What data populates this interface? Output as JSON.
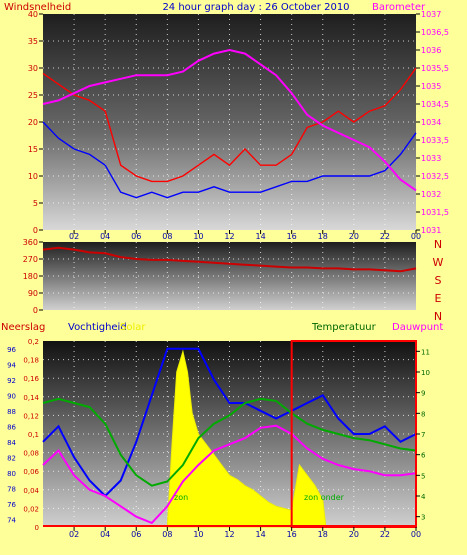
{
  "chart_data": [
    {
      "type": "line",
      "title": "24 hour graph day : 26 October 2010",
      "left_label": "Windsnelheid",
      "right_label": "Barometer",
      "x_ticks": [
        "02",
        "04",
        "06",
        "08",
        "10",
        "12",
        "14",
        "16",
        "18",
        "20",
        "22",
        "00"
      ],
      "y_left_ticks": [
        "0",
        "5",
        "10",
        "15",
        "20",
        "25",
        "30",
        "35",
        "40"
      ],
      "y_left_range": [
        0,
        40
      ],
      "y_right_ticks": [
        "1031",
        "1031,5",
        "1032",
        "1032,5",
        "1033",
        "1033,5",
        "1034",
        "1034,5",
        "1035",
        "1035,5",
        "1036",
        "1036,5",
        "1037"
      ],
      "y_right_range": [
        1031,
        1037
      ],
      "series": [
        {
          "color": "#ff0000",
          "axis": "left",
          "x": [
            0,
            1,
            2,
            3,
            4,
            5,
            6,
            7,
            8,
            9,
            10,
            11,
            12,
            13,
            14,
            15,
            16,
            17,
            18,
            19,
            20,
            21,
            22,
            23,
            24
          ],
          "y": [
            29,
            27,
            25,
            24,
            22,
            12,
            10,
            9,
            9,
            10,
            12,
            14,
            12,
            15,
            12,
            12,
            14,
            19,
            20,
            22,
            20,
            22,
            23,
            26,
            30
          ]
        },
        {
          "color": "#0000ff",
          "axis": "left",
          "x": [
            0,
            1,
            2,
            3,
            4,
            5,
            6,
            7,
            8,
            9,
            10,
            11,
            12,
            13,
            14,
            15,
            16,
            17,
            18,
            19,
            20,
            21,
            22,
            23,
            24
          ],
          "y": [
            20,
            17,
            15,
            14,
            12,
            7,
            6,
            7,
            6,
            7,
            7,
            8,
            7,
            7,
            7,
            8,
            9,
            9,
            10,
            10,
            10,
            10,
            11,
            14,
            18
          ]
        },
        {
          "color": "#ff00ff",
          "axis": "right",
          "x": [
            0,
            1,
            2,
            3,
            4,
            5,
            6,
            7,
            8,
            9,
            10,
            11,
            12,
            13,
            14,
            15,
            16,
            17,
            18,
            19,
            20,
            21,
            22,
            23,
            24
          ],
          "y": [
            1034.5,
            1034.6,
            1034.8,
            1035.0,
            1035.1,
            1035.2,
            1035.3,
            1035.3,
            1035.3,
            1035.4,
            1035.7,
            1035.9,
            1036.0,
            1035.9,
            1035.6,
            1035.3,
            1034.8,
            1034.2,
            1033.9,
            1033.7,
            1033.5,
            1033.3,
            1032.9,
            1032.4,
            1032.1
          ]
        }
      ]
    },
    {
      "type": "line",
      "y_ticks": [
        "0",
        "90",
        "180",
        "270",
        "360"
      ],
      "y_range": [
        0,
        360
      ],
      "right_labels": [
        "N",
        "W",
        "S",
        "E",
        "N"
      ],
      "series": [
        {
          "color": "#cc0000",
          "x": [
            0,
            1,
            2,
            3,
            4,
            5,
            6,
            7,
            8,
            9,
            10,
            11,
            12,
            13,
            14,
            15,
            16,
            17,
            18,
            19,
            20,
            21,
            22,
            23,
            24
          ],
          "y": [
            320,
            330,
            320,
            305,
            300,
            280,
            270,
            265,
            265,
            260,
            255,
            250,
            245,
            240,
            235,
            230,
            225,
            225,
            220,
            220,
            215,
            215,
            210,
            205,
            220
          ]
        }
      ]
    },
    {
      "type": "line",
      "labels": {
        "neerslag": "Neerslag",
        "vochtigheid": "Vochtigheid",
        "solar": "Solar",
        "temperatuur": "Temperatuur",
        "dauwpunt": "Dauwpunt",
        "zon": "zon",
        "zon_onder": "zon onder"
      },
      "y_left_ticks": [
        "0",
        "0,02",
        "0,04",
        "0,06",
        "0,08",
        "0,1",
        "0,12",
        "0,14",
        "0,16",
        "0,18",
        "0,2"
      ],
      "y_left_range": [
        0,
        0.2
      ],
      "y_hum_ticks": [
        "74",
        "76",
        "78",
        "80",
        "82",
        "84",
        "86",
        "88",
        "90",
        "92",
        "94",
        "96"
      ],
      "y_hum_range": [
        73,
        97
      ],
      "y_right_ticks": [
        "3",
        "4",
        "5",
        "6",
        "7",
        "8",
        "9",
        "10",
        "11"
      ],
      "y_right_range": [
        2.5,
        11.5
      ],
      "series": [
        {
          "name": "Vochtigheid",
          "color": "#0000ff",
          "x": [
            0,
            1,
            2,
            3,
            4,
            5,
            6,
            7,
            8,
            9,
            10,
            11,
            12,
            13,
            14,
            15,
            16,
            17,
            18,
            19,
            20,
            21,
            22,
            23,
            24
          ],
          "y": [
            84,
            86,
            82,
            79,
            77,
            79,
            84,
            90,
            96,
            96,
            96,
            92,
            89,
            89,
            88,
            87,
            88,
            89,
            90,
            87,
            85,
            85,
            86,
            84,
            85
          ]
        },
        {
          "name": "Temperatuur",
          "color": "#00aa00",
          "x": [
            0,
            1,
            2,
            3,
            4,
            5,
            6,
            7,
            8,
            9,
            10,
            11,
            12,
            13,
            14,
            15,
            16,
            17,
            18,
            19,
            20,
            21,
            22,
            23,
            24
          ],
          "y": [
            8.5,
            8.7,
            8.5,
            8.3,
            7.5,
            6.0,
            5.0,
            4.5,
            4.7,
            5.5,
            6.8,
            7.5,
            7.9,
            8.5,
            8.7,
            8.6,
            8.0,
            7.5,
            7.2,
            7.0,
            6.8,
            6.7,
            6.5,
            6.3,
            6.2
          ]
        },
        {
          "name": "Dauwpunt",
          "color": "#ff00ff",
          "x": [
            0,
            1,
            2,
            3,
            4,
            5,
            6,
            7,
            8,
            9,
            10,
            11,
            12,
            13,
            14,
            15,
            16,
            17,
            18,
            19,
            20,
            21,
            22,
            23,
            24
          ],
          "y": [
            5.5,
            6.2,
            5.0,
            4.3,
            4.0,
            3.5,
            3.0,
            2.7,
            3.5,
            4.7,
            5.5,
            6.2,
            6.5,
            6.8,
            7.3,
            7.4,
            7.0,
            6.3,
            5.8,
            5.5,
            5.3,
            5.2,
            5.0,
            5.0,
            5.1
          ]
        },
        {
          "name": "Solar",
          "color": "#ffff00",
          "x": [
            8,
            8.3,
            8.6,
            9,
            9.3,
            9.6,
            10,
            10.5,
            11,
            11.5,
            12,
            12.5,
            13,
            13.5,
            14,
            14.5,
            15,
            15.5,
            16,
            16.5,
            17,
            17.5,
            18,
            18.2
          ],
          "y": [
            2.5,
            6.5,
            10,
            11,
            10,
            8,
            7,
            6.5,
            6,
            5.5,
            5,
            4.8,
            4.5,
            4.3,
            4.0,
            3.7,
            3.5,
            3.4,
            3.3,
            5.5,
            5.0,
            4.5,
            3.8,
            2.5
          ]
        }
      ],
      "sun_marker": {
        "from": 16,
        "to": 24
      }
    }
  ]
}
